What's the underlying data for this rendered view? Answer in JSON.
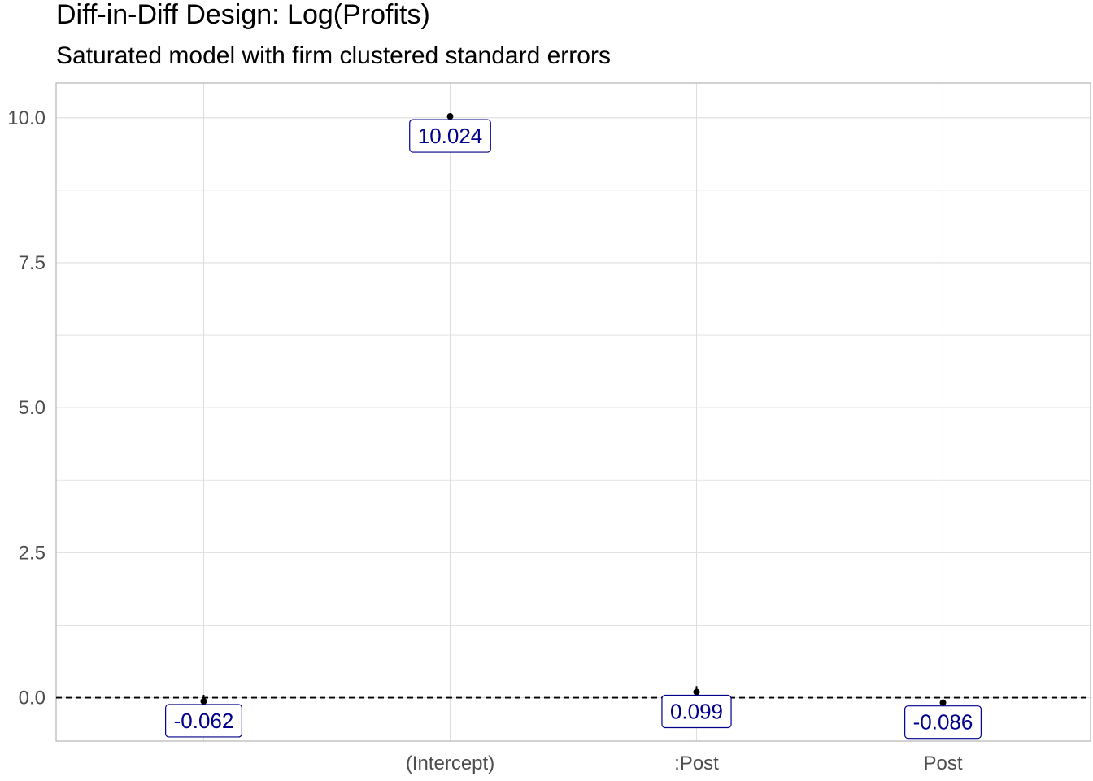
{
  "chart_data": {
    "type": "scatter",
    "title": "Diff-in-Diff Design: Log(Profits)",
    "subtitle": "Saturated model with firm clustered standard errors",
    "xlabel": "",
    "ylabel": "",
    "categories": [
      "",
      "(Intercept)",
      ":Post",
      "Post"
    ],
    "values": [
      -0.062,
      10.024,
      0.099,
      -0.086
    ],
    "ci_low": [
      -0.1,
      9.99,
      0.0,
      -0.11
    ],
    "ci_high": [
      0.05,
      10.06,
      0.2,
      -0.06
    ],
    "data_labels": [
      "-0.062",
      "10.024",
      "0.099",
      "-0.086"
    ],
    "ylim": [
      -0.75,
      10.6
    ],
    "y_ticks": [
      0.0,
      2.5,
      5.0,
      7.5,
      10.0
    ],
    "y_tick_labels": [
      "0.0",
      "2.5",
      "5.0",
      "7.5",
      "10.0"
    ],
    "reference_line": 0,
    "grid": true,
    "colors": {
      "point": "#000000",
      "label_text": "#00008b",
      "label_border": "#00008b",
      "grid": "#dedede",
      "axis": "#b3b3b3"
    }
  }
}
